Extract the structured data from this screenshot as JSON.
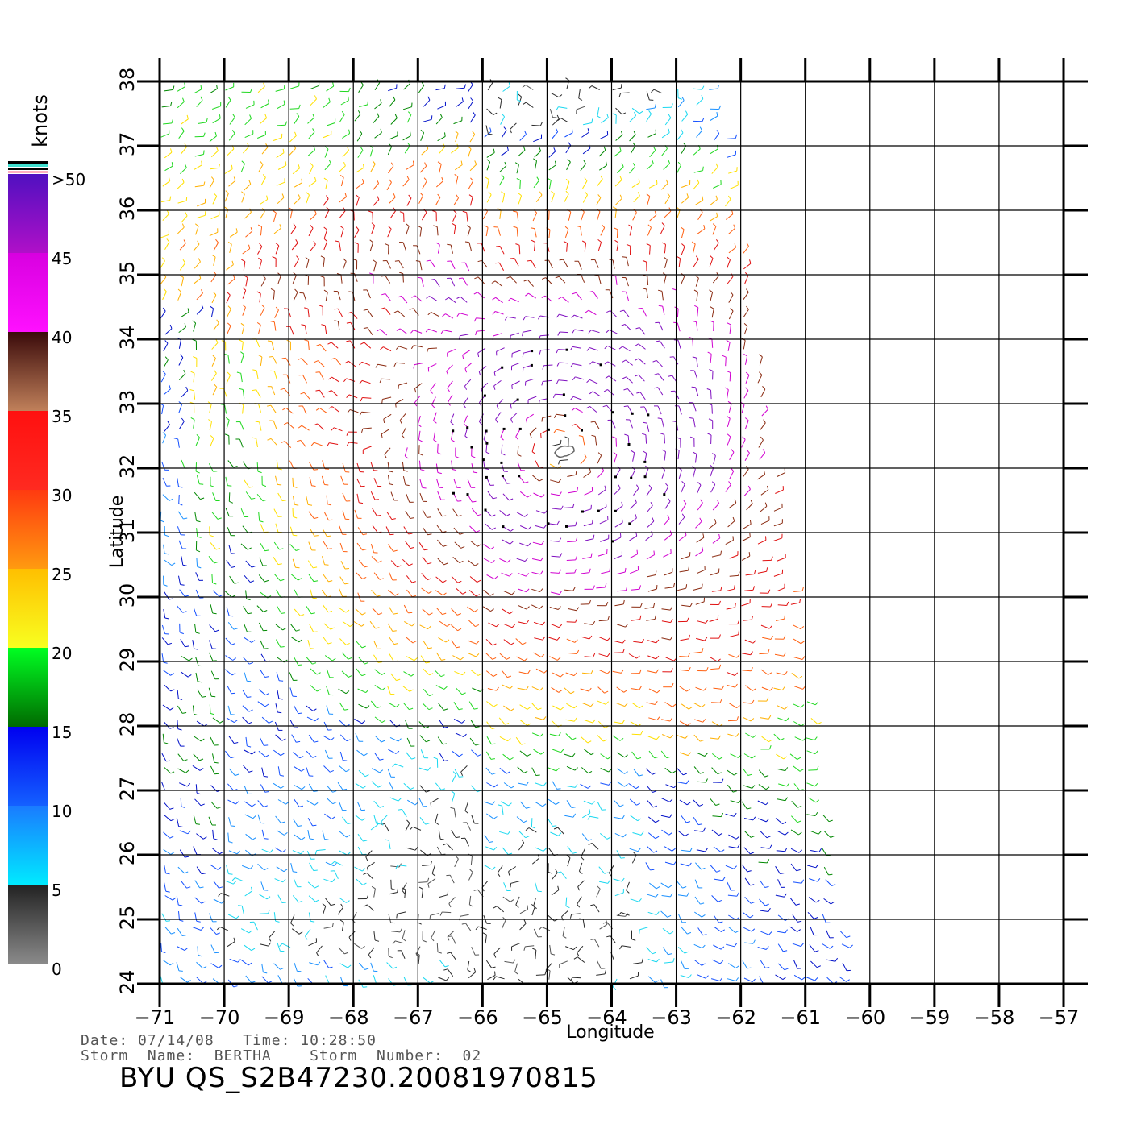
{
  "map": {
    "x_label": "Longitude",
    "y_label": "Latitude",
    "lon_ticks": [
      "-71",
      "-70",
      "-69",
      "-68",
      "-67",
      "-66",
      "-65",
      "-64",
      "-63",
      "-62",
      "-61",
      "-60",
      "-59",
      "-58",
      "-57"
    ],
    "lat_ticks": [
      "24",
      "25",
      "26",
      "27",
      "28",
      "29",
      "30",
      "31",
      "32",
      "33",
      "34",
      "35",
      "36",
      "37",
      "38"
    ],
    "lon_range": [
      -71,
      -57
    ],
    "lat_range": [
      24,
      38
    ],
    "swath_east_edge_lon": [
      [
        38,
        -62.3
      ],
      [
        24,
        -60.3
      ]
    ],
    "storm_center": {
      "lon": -64.8,
      "lat": 32.3
    }
  },
  "colorbar": {
    "unit": "knots",
    "labels": [
      ">50",
      "45",
      "40",
      "35",
      "30",
      "25",
      "20",
      "15",
      "10",
      "5",
      "0"
    ],
    "bands": [
      {
        "from": 0,
        "to": 5,
        "colors": [
          "#8a8a8a",
          "#222222"
        ]
      },
      {
        "from": 5,
        "to": 10,
        "colors": [
          "#00eaff",
          "#1a7bff"
        ]
      },
      {
        "from": 10,
        "to": 15,
        "colors": [
          "#1460ff",
          "#0000f0"
        ]
      },
      {
        "from": 15,
        "to": 20,
        "colors": [
          "#006a00",
          "#00ff22"
        ]
      },
      {
        "from": 20,
        "to": 25,
        "colors": [
          "#f8ff20",
          "#ffbf00"
        ]
      },
      {
        "from": 25,
        "to": 30,
        "colors": [
          "#ff9a10",
          "#ff3a10"
        ]
      },
      {
        "from": 30,
        "to": 35,
        "colors": [
          "#ff2a20",
          "#ff1010"
        ]
      },
      {
        "from": 35,
        "to": 40,
        "colors": [
          "#c0805a",
          "#3a0a0a"
        ]
      },
      {
        "from": 40,
        "to": 45,
        "colors": [
          "#ff10ff",
          "#d800e0"
        ]
      },
      {
        "from": 45,
        "to": 50,
        "colors": [
          "#b010c8",
          "#5010c0"
        ]
      }
    ]
  },
  "info": {
    "line1": "Date: 07/14/08   Time: 10:28:50",
    "line2": "Storm  Name:  BERTHA    Storm  Number:  02",
    "title": "BYU  QS_S2B47230.20081970815"
  }
}
